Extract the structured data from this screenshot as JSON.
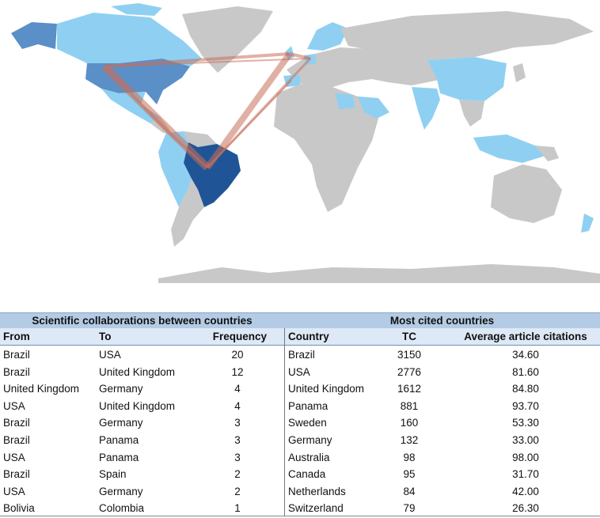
{
  "colors": {
    "ocean": "#ffffff",
    "land_no_data": "#c8c8c8",
    "level_1": "#8fd0f2",
    "level_2": "#5b8fc7",
    "level_3": "#1f5596",
    "collaboration_line": "#c8705a",
    "header_band": "#b3cbe4",
    "column_header_band": "#dde9f6"
  },
  "map": {
    "highlighted_countries": [
      {
        "name": "Brazil",
        "level": 3
      },
      {
        "name": "USA",
        "level": 2
      },
      {
        "name": "United Kingdom",
        "level": 1
      },
      {
        "name": "Germany",
        "level": 1
      },
      {
        "name": "Spain",
        "level": 1
      },
      {
        "name": "Sweden",
        "level": 1
      },
      {
        "name": "Norway",
        "level": 1
      },
      {
        "name": "Canada",
        "level": 1
      },
      {
        "name": "Mexico",
        "level": 1
      },
      {
        "name": "Colombia",
        "level": 1
      },
      {
        "name": "Peru",
        "level": 1
      },
      {
        "name": "Bolivia",
        "level": 1
      },
      {
        "name": "Chile",
        "level": 1
      },
      {
        "name": "China",
        "level": 1
      },
      {
        "name": "India",
        "level": 1
      },
      {
        "name": "Saudi Arabia",
        "level": 1
      },
      {
        "name": "Egypt",
        "level": 1
      },
      {
        "name": "Indonesia",
        "level": 1
      },
      {
        "name": "Malaysia",
        "level": 1
      },
      {
        "name": "New Zealand",
        "level": 1
      }
    ]
  },
  "chart_data": [
    {
      "type": "table",
      "title": "Scientific collaborations between countries",
      "columns": [
        "From",
        "To",
        "Frequency"
      ],
      "rows": [
        [
          "Brazil",
          "USA",
          "20"
        ],
        [
          "Brazil",
          "United Kingdom",
          "12"
        ],
        [
          "United Kingdom",
          "Germany",
          "4"
        ],
        [
          "USA",
          "United Kingdom",
          "4"
        ],
        [
          "Brazil",
          "Germany",
          "3"
        ],
        [
          "Brazil",
          "Panama",
          "3"
        ],
        [
          "USA",
          "Panama",
          "3"
        ],
        [
          "Brazil",
          "Spain",
          "2"
        ],
        [
          "USA",
          "Germany",
          "2"
        ],
        [
          "Bolivia",
          "Colombia",
          "1"
        ]
      ]
    },
    {
      "type": "table",
      "title": "Most cited countries",
      "columns": [
        "Country",
        "TC",
        "Average article citations"
      ],
      "rows": [
        [
          "Brazil",
          "3150",
          "34.60"
        ],
        [
          "USA",
          "2776",
          "81.60"
        ],
        [
          "United Kingdom",
          "1612",
          "84.80"
        ],
        [
          "Panama",
          "881",
          "93.70"
        ],
        [
          "Sweden",
          "160",
          "53.30"
        ],
        [
          "Germany",
          "132",
          "33.00"
        ],
        [
          "Australia",
          "98",
          "98.00"
        ],
        [
          "Canada",
          "95",
          "31.70"
        ],
        [
          "Netherlands",
          "84",
          "42.00"
        ],
        [
          "Switzerland",
          "79",
          "26.30"
        ]
      ]
    }
  ]
}
